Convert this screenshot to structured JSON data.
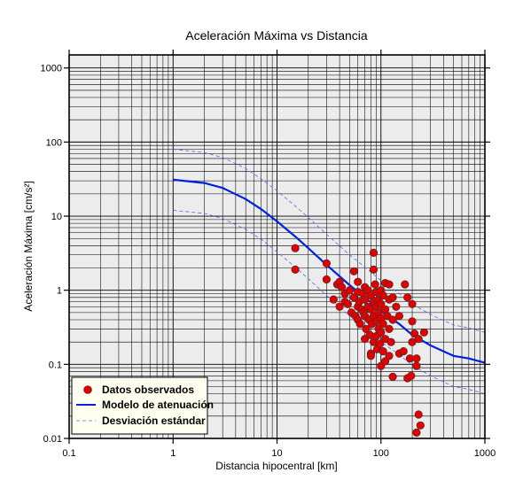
{
  "chart_data": {
    "type": "scatter",
    "title": "Aceleración Máxima vs Distancia",
    "xlabel": "Distancia hipocentral [km]",
    "ylabel": "Aceleración Máxima [cm/s²]",
    "xscale": "log",
    "yscale": "log",
    "xlim": [
      0.1,
      1000
    ],
    "ylim": [
      0.01,
      1500
    ],
    "x_ticks": [
      "0.1",
      "1",
      "10",
      "100",
      "1000"
    ],
    "y_ticks": [
      "0.01",
      "0.1",
      "1",
      "10",
      "100",
      "1000"
    ],
    "grid": true,
    "legend": {
      "placement": "bottom-left",
      "entries": [
        "Datos observados",
        "Modelo de atenuación",
        "Desviación estándar"
      ]
    },
    "colors": {
      "points": "#e00000",
      "model": "#0022dd",
      "std": "#5566ee",
      "plot_background": "#ececec",
      "legend_background": "#fffff0"
    },
    "series": [
      {
        "name": "Modelo de atenuación",
        "style": "line",
        "x": [
          1,
          2,
          3,
          5,
          7,
          10,
          15,
          20,
          30,
          50,
          70,
          100,
          150,
          200,
          300,
          500,
          700,
          1000
        ],
        "y": [
          31,
          28,
          24,
          17,
          12.5,
          8.5,
          5.3,
          3.7,
          2.2,
          1.17,
          0.8,
          0.52,
          0.35,
          0.25,
          0.18,
          0.13,
          0.12,
          0.105
        ]
      },
      {
        "name": "Desviación estándar (superior)",
        "style": "dashed",
        "x": [
          1,
          2,
          3,
          5,
          7,
          10,
          15,
          20,
          30,
          50,
          70,
          100,
          150,
          200,
          300,
          500,
          700,
          1000
        ],
        "y": [
          80,
          72,
          62,
          44,
          32,
          22,
          13.7,
          9.6,
          5.7,
          3.0,
          2.05,
          1.35,
          0.9,
          0.65,
          0.47,
          0.34,
          0.31,
          0.27
        ]
      },
      {
        "name": "Desviación estándar (inferior)",
        "style": "dashed",
        "x": [
          1,
          2,
          3,
          5,
          7,
          10,
          15,
          20,
          30,
          50,
          70,
          100,
          150,
          200,
          300,
          500,
          700,
          1000
        ],
        "y": [
          12,
          10.9,
          9.3,
          6.6,
          4.9,
          3.3,
          2.05,
          1.43,
          0.85,
          0.45,
          0.31,
          0.2,
          0.135,
          0.097,
          0.07,
          0.05,
          0.046,
          0.04
        ]
      },
      {
        "name": "Datos observados",
        "style": "points",
        "points": [
          [
            15,
            3.7
          ],
          [
            15,
            1.9
          ],
          [
            30,
            2.3
          ],
          [
            30,
            1.4
          ],
          [
            35,
            0.75
          ],
          [
            38,
            1.2
          ],
          [
            40,
            1.3
          ],
          [
            40,
            0.6
          ],
          [
            42,
            1.1
          ],
          [
            45,
            0.9
          ],
          [
            45,
            0.7
          ],
          [
            48,
            0.65
          ],
          [
            50,
            1.0
          ],
          [
            52,
            0.5
          ],
          [
            55,
            1.8
          ],
          [
            55,
            0.8
          ],
          [
            57,
            0.45
          ],
          [
            60,
            1.3
          ],
          [
            60,
            0.95
          ],
          [
            60,
            0.6
          ],
          [
            60,
            0.4
          ],
          [
            62,
            0.7
          ],
          [
            63,
            0.35
          ],
          [
            65,
            0.55
          ],
          [
            67,
            0.9
          ],
          [
            68,
            0.5
          ],
          [
            70,
            1.1
          ],
          [
            70,
            0.75
          ],
          [
            70,
            0.45
          ],
          [
            70,
            0.22
          ],
          [
            72,
            0.3
          ],
          [
            75,
            1.0
          ],
          [
            75,
            0.6
          ],
          [
            77,
            0.4
          ],
          [
            78,
            0.25
          ],
          [
            80,
            0.85
          ],
          [
            80,
            0.55
          ],
          [
            80,
            0.14
          ],
          [
            80,
            0.13
          ],
          [
            82,
            0.35
          ],
          [
            85,
            3.2
          ],
          [
            85,
            1.9
          ],
          [
            85,
            0.7
          ],
          [
            85,
            0.45
          ],
          [
            85,
            0.2
          ],
          [
            88,
            1.2
          ],
          [
            90,
            0.95
          ],
          [
            90,
            0.6
          ],
          [
            90,
            0.38
          ],
          [
            90,
            0.24
          ],
          [
            92,
            0.16
          ],
          [
            95,
            0.75
          ],
          [
            95,
            0.5
          ],
          [
            95,
            0.3
          ],
          [
            98,
            0.19
          ],
          [
            100,
            1.0
          ],
          [
            100,
            0.65
          ],
          [
            100,
            0.42
          ],
          [
            100,
            0.27
          ],
          [
            100,
            0.095
          ],
          [
            105,
            0.85
          ],
          [
            105,
            0.35
          ],
          [
            105,
            0.15
          ],
          [
            110,
            1.25
          ],
          [
            110,
            0.55
          ],
          [
            110,
            0.22
          ],
          [
            110,
            0.11
          ],
          [
            115,
            0.45
          ],
          [
            120,
            1.2
          ],
          [
            120,
            0.75
          ],
          [
            120,
            0.3
          ],
          [
            120,
            0.13
          ],
          [
            125,
            0.2
          ],
          [
            130,
            0.8
          ],
          [
            130,
            0.4
          ],
          [
            130,
            0.068
          ],
          [
            140,
            0.6
          ],
          [
            150,
            0.45
          ],
          [
            150,
            0.14
          ],
          [
            165,
            0.15
          ],
          [
            170,
            1.2
          ],
          [
            180,
            0.8
          ],
          [
            180,
            0.065
          ],
          [
            190,
            0.12
          ],
          [
            195,
            0.07
          ],
          [
            200,
            0.65
          ],
          [
            200,
            0.38
          ],
          [
            200,
            0.2
          ],
          [
            210,
            0.26
          ],
          [
            220,
            0.12
          ],
          [
            220,
            0.095
          ],
          [
            220,
            0.012
          ],
          [
            230,
            0.22
          ],
          [
            230,
            0.021
          ],
          [
            240,
            0.015
          ],
          [
            260,
            0.27
          ]
        ]
      }
    ]
  }
}
